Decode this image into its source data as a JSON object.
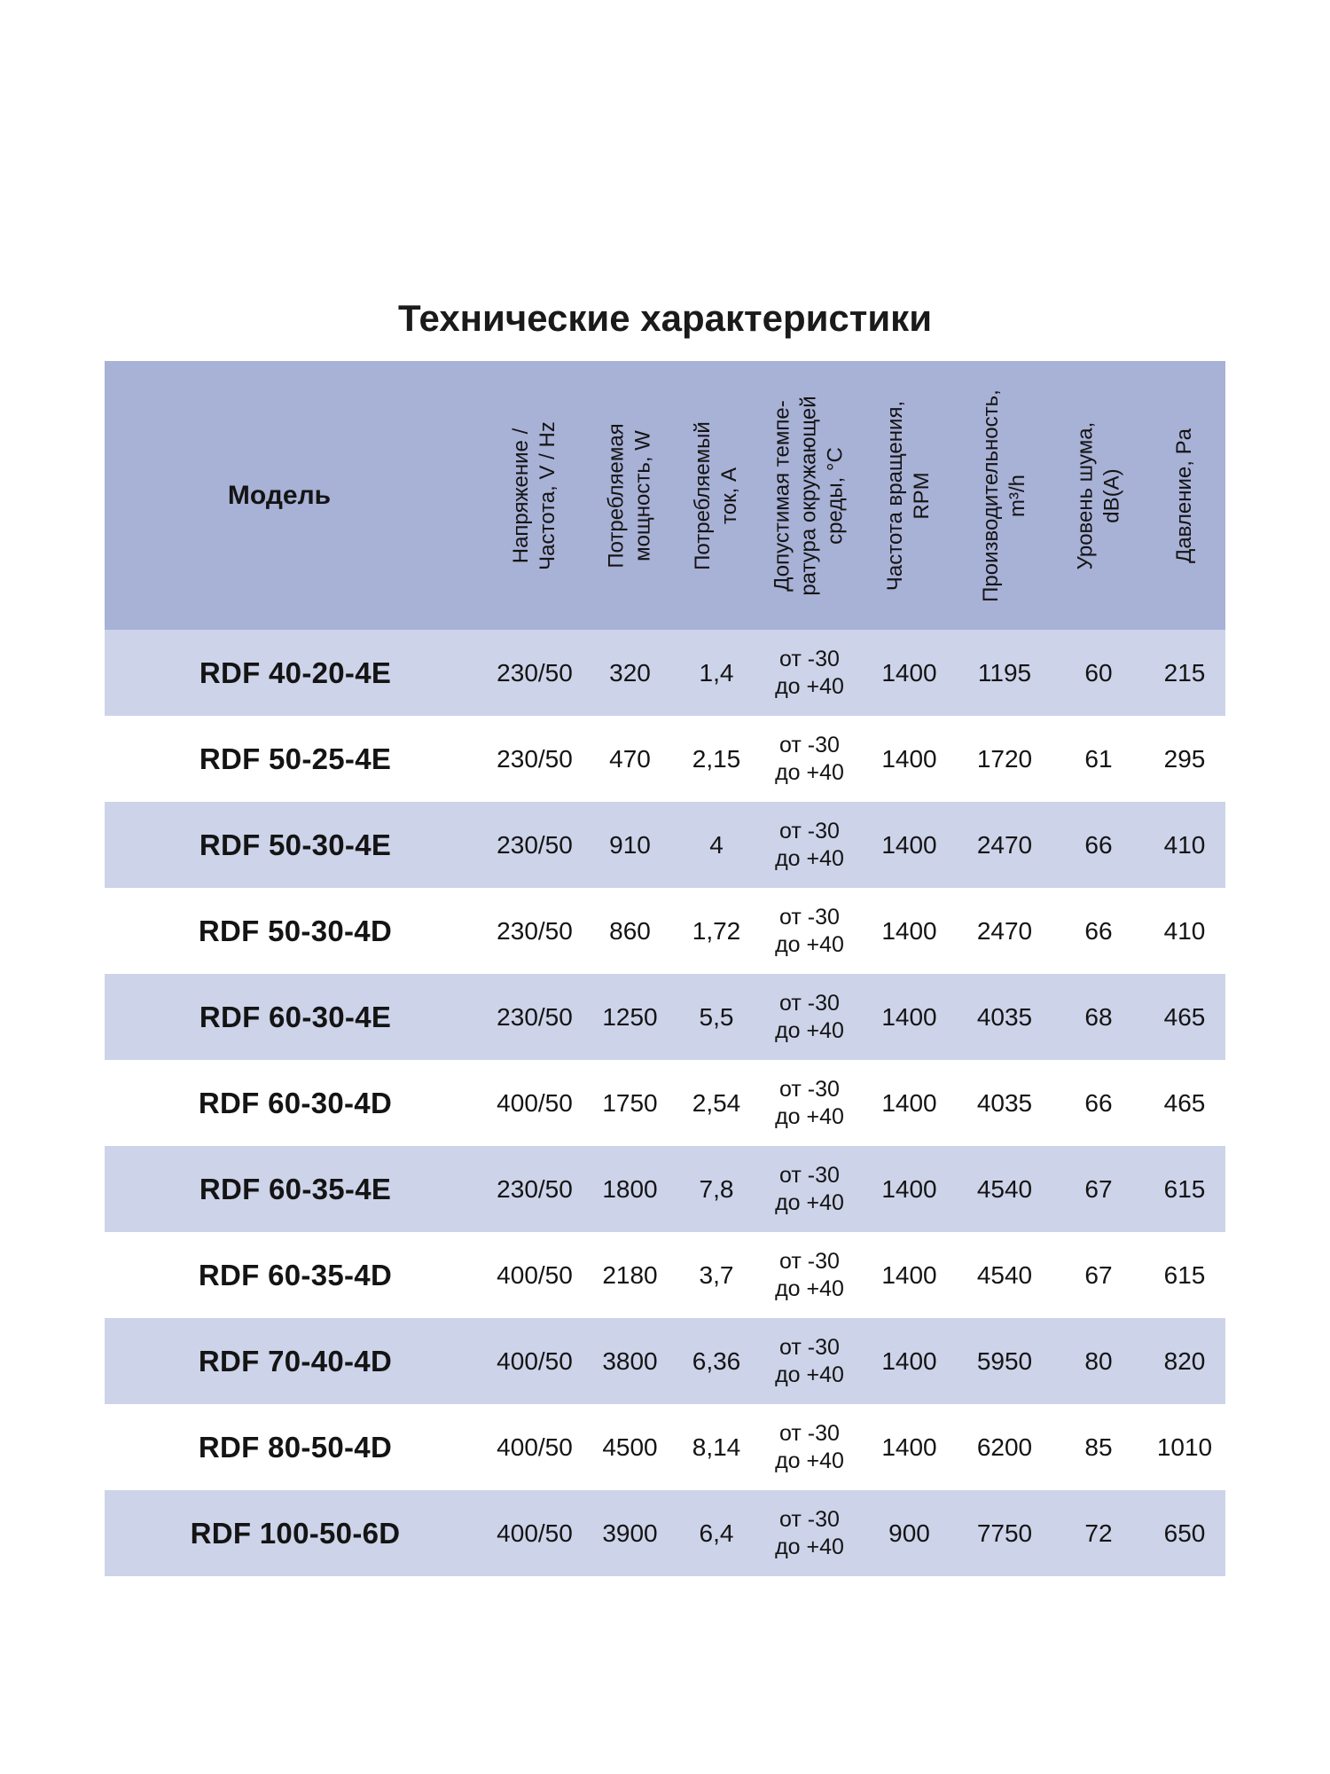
{
  "title": "Технические характеристики",
  "colors": {
    "header_bg": "#a8b1d6",
    "row_alt_bg": "#cdd3e9",
    "row_bg": "#ffffff",
    "text": "#141414"
  },
  "table": {
    "model_header": "Модель",
    "columns": [
      {
        "id": "voltage",
        "label": "Напряжение /\nЧастота, V / Hz"
      },
      {
        "id": "power",
        "label": "Потребляемая\nмощность, W"
      },
      {
        "id": "current",
        "label": "Потребляемый\nток, А"
      },
      {
        "id": "temperature",
        "label": "Допустимая темпе-\nратура окружающей\nсреды, °С"
      },
      {
        "id": "rpm",
        "label": "Частота вращения,\nRPM"
      },
      {
        "id": "airflow",
        "label": "Производительность,\nm³/h"
      },
      {
        "id": "noise",
        "label": "Уровень шума,\ndB(A)"
      },
      {
        "id": "pressure",
        "label": "Давление, Pa"
      }
    ],
    "rows": [
      {
        "model": "RDF 40-20-4E",
        "values": [
          "230/50",
          "320",
          "1,4",
          "от -30\nдо +40",
          "1400",
          "1195",
          "60",
          "215"
        ]
      },
      {
        "model": "RDF 50-25-4E",
        "values": [
          "230/50",
          "470",
          "2,15",
          "от -30\nдо +40",
          "1400",
          "1720",
          "61",
          "295"
        ]
      },
      {
        "model": "RDF 50-30-4E",
        "values": [
          "230/50",
          "910",
          "4",
          "от -30\nдо +40",
          "1400",
          "2470",
          "66",
          "410"
        ]
      },
      {
        "model": "RDF 50-30-4D",
        "values": [
          "230/50",
          "860",
          "1,72",
          "от -30\nдо +40",
          "1400",
          "2470",
          "66",
          "410"
        ]
      },
      {
        "model": "RDF 60-30-4E",
        "values": [
          "230/50",
          "1250",
          "5,5",
          "от -30\nдо +40",
          "1400",
          "4035",
          "68",
          "465"
        ]
      },
      {
        "model": "RDF 60-30-4D",
        "values": [
          "400/50",
          "1750",
          "2,54",
          "от -30\nдо +40",
          "1400",
          "4035",
          "66",
          "465"
        ]
      },
      {
        "model": "RDF 60-35-4E",
        "values": [
          "230/50",
          "1800",
          "7,8",
          "от -30\nдо +40",
          "1400",
          "4540",
          "67",
          "615"
        ]
      },
      {
        "model": "RDF 60-35-4D",
        "values": [
          "400/50",
          "2180",
          "3,7",
          "от -30\nдо +40",
          "1400",
          "4540",
          "67",
          "615"
        ]
      },
      {
        "model": "RDF 70-40-4D",
        "values": [
          "400/50",
          "3800",
          "6,36",
          "от -30\nдо +40",
          "1400",
          "5950",
          "80",
          "820"
        ]
      },
      {
        "model": "RDF 80-50-4D",
        "values": [
          "400/50",
          "4500",
          "8,14",
          "от -30\nдо +40",
          "1400",
          "6200",
          "85",
          "1010"
        ]
      },
      {
        "model": "RDF 100-50-6D",
        "values": [
          "400/50",
          "3900",
          "6,4",
          "от -30\nдо +40",
          "900",
          "7750",
          "72",
          "650"
        ]
      }
    ]
  }
}
